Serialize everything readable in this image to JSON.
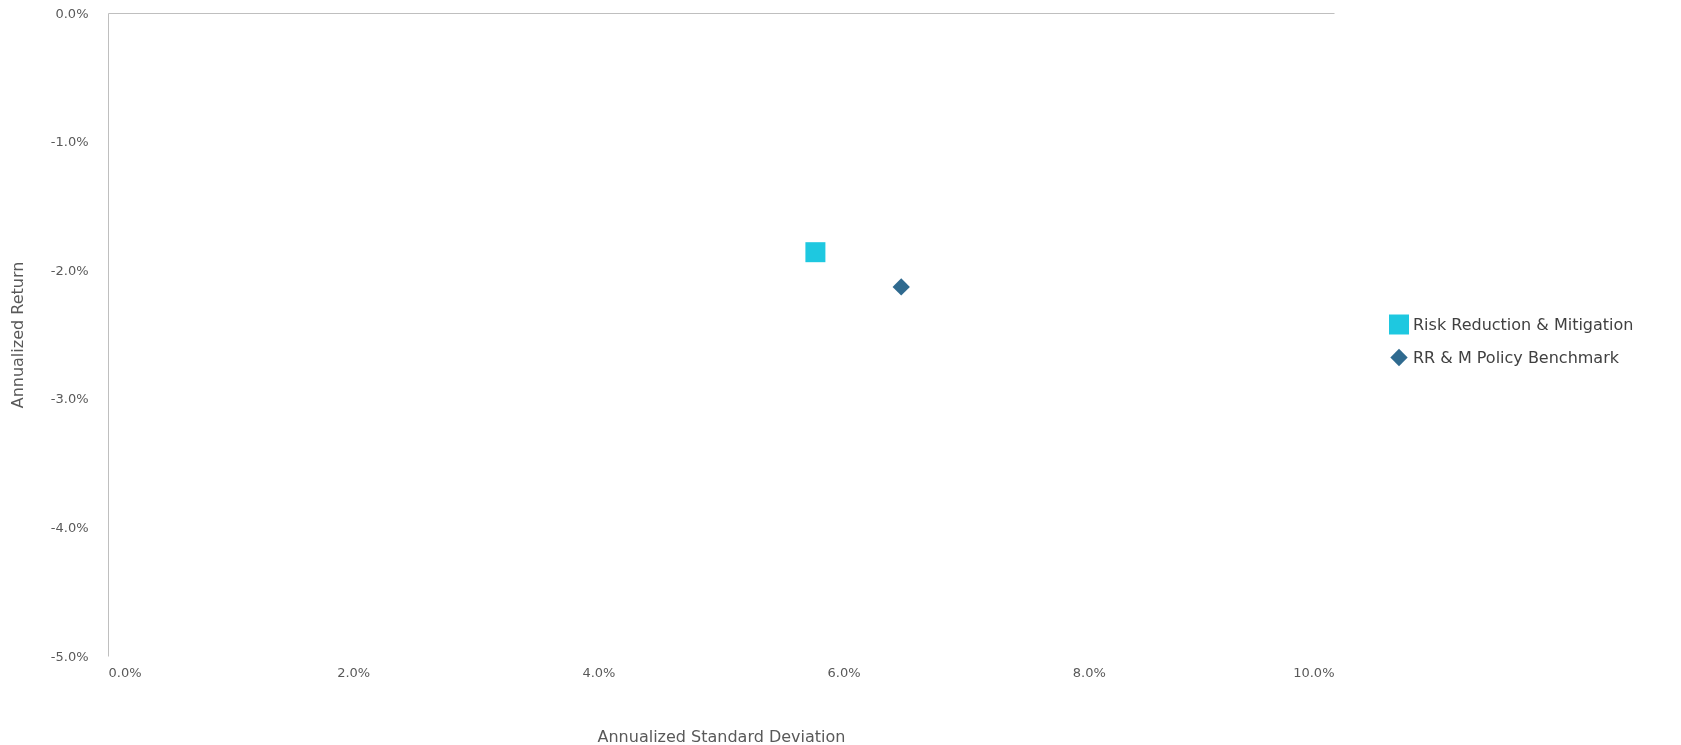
{
  "chart_data": {
    "type": "scatter",
    "xlabel": "Annualized Standard Deviation",
    "ylabel": "Annualized Return",
    "xlim": [
      0,
      10
    ],
    "ylim": [
      -5,
      0
    ],
    "xticks": [
      {
        "value": 0,
        "label": "0.0%"
      },
      {
        "value": 2,
        "label": "2.0%"
      },
      {
        "value": 4,
        "label": "4.0%"
      },
      {
        "value": 6,
        "label": "6.0%"
      },
      {
        "value": 8,
        "label": "8.0%"
      },
      {
        "value": 10,
        "label": "10.0%"
      }
    ],
    "yticks": [
      {
        "value": 0,
        "label": "0.0%"
      },
      {
        "value": -1,
        "label": "-1.0%"
      },
      {
        "value": -2,
        "label": "-2.0%"
      },
      {
        "value": -3,
        "label": "-3.0%"
      },
      {
        "value": -4,
        "label": "-4.0%"
      },
      {
        "value": -5,
        "label": "-5.0%"
      }
    ],
    "legend": "right",
    "series": [
      {
        "name": "Risk Reduction & Mitigation",
        "color": "#1ec8e0",
        "marker": "square",
        "x": [
          5.77
        ],
        "values": [
          -1.86
        ]
      },
      {
        "name": "RR & M Policy Benchmark",
        "color": "#2f6a8f",
        "marker": "diamond",
        "x": [
          6.47
        ],
        "values": [
          -2.13
        ]
      }
    ]
  }
}
